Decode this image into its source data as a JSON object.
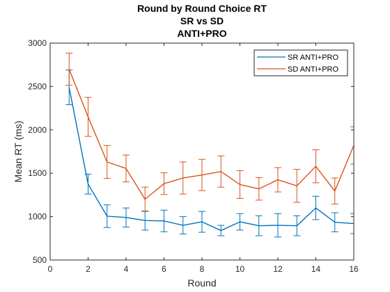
{
  "chart_data": {
    "type": "line",
    "title_lines": [
      "Round by Round Choice RT",
      "SR vs SD",
      "ANTI+PRO"
    ],
    "xlabel": "Round",
    "ylabel": "Mean RT (ms)",
    "xlim": [
      0,
      16
    ],
    "ylim": [
      500,
      3000
    ],
    "xticks": [
      0,
      2,
      4,
      6,
      8,
      10,
      12,
      14,
      16
    ],
    "yticks": [
      500,
      1000,
      1500,
      2000,
      2500,
      3000
    ],
    "grid": false,
    "legend_location": "top-right",
    "x": [
      1,
      2,
      3,
      4,
      5,
      6,
      7,
      8,
      9,
      10,
      11,
      12,
      13,
      14,
      15,
      16
    ],
    "series": [
      {
        "name": "SR ANTI+PRO",
        "color": "#0072BD",
        "values": [
          2490,
          1375,
          1005,
          990,
          955,
          950,
          900,
          940,
          840,
          940,
          895,
          900,
          895,
          1100,
          935,
          920
        ],
        "error": [
          200,
          115,
          130,
          110,
          110,
          125,
          100,
          120,
          60,
          95,
          115,
          135,
          115,
          135,
          110,
          115
        ]
      },
      {
        "name": "SD ANTI+PRO",
        "color": "#D95319",
        "values": [
          2700,
          2150,
          1630,
          1555,
          1200,
          1380,
          1445,
          1480,
          1520,
          1370,
          1320,
          1425,
          1355,
          1580,
          1295,
          1820
        ],
        "error": [
          185,
          225,
          190,
          155,
          140,
          125,
          185,
          180,
          180,
          160,
          130,
          140,
          190,
          190,
          150,
          215
        ]
      }
    ]
  }
}
